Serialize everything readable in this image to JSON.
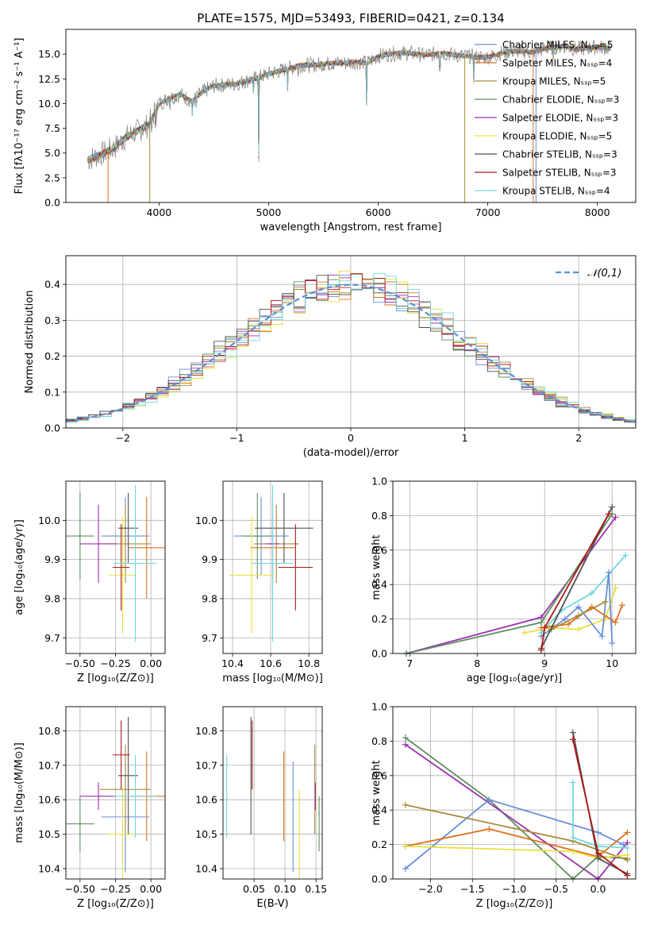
{
  "chart_data": [
    {
      "type": "line",
      "title": "PLATE=1575, MJD=53493, FIBERID=0421, z=0.134",
      "xlabel": "wavelength [Angstrom, rest frame]",
      "ylabel": "Flux [fλ10⁻¹⁷ erg cm⁻² s⁻¹ A⁻¹]",
      "xlim": [
        3150,
        8350
      ],
      "ylim": [
        0,
        17.5
      ],
      "xticks": [
        "4000",
        "5000",
        "6000",
        "7000",
        "8000"
      ],
      "yticks": [
        "0.0",
        "2.5",
        "5.0",
        "7.5",
        "10.0",
        "12.5",
        "15.0"
      ],
      "legend_position": "top-right",
      "spectrum": {
        "x": [
          3350,
          3500,
          3600,
          3700,
          3800,
          3900,
          4000,
          4100,
          4200,
          4300,
          4400,
          4500,
          4600,
          4700,
          4800,
          4900,
          5000,
          5100,
          5200,
          5300,
          5400,
          5500,
          5600,
          5700,
          5800,
          5900,
          6000,
          6100,
          6200,
          6300,
          6400,
          6500,
          6600,
          6700,
          6800,
          6900,
          7000,
          7100,
          7200,
          7300,
          7400,
          7500,
          7600,
          7700,
          7800,
          7900,
          8000,
          8100
        ],
        "y": [
          4.3,
          5.0,
          5.6,
          6.6,
          7.2,
          7.8,
          10.0,
          10.6,
          10.9,
          10.2,
          11.2,
          11.8,
          11.9,
          12.0,
          12.3,
          12.6,
          13.0,
          13.3,
          13.6,
          13.9,
          13.9,
          14.0,
          14.1,
          14.1,
          14.2,
          14.1,
          14.8,
          15.0,
          15.1,
          15.1,
          14.9,
          15.0,
          15.1,
          14.9,
          14.8,
          14.7,
          14.7,
          15.0,
          15.3,
          15.3,
          15.2,
          15.5,
          15.7,
          15.8,
          15.5,
          15.6,
          15.7,
          15.6
        ]
      },
      "series": [
        {
          "name": "Chabrier MILES, N_SSP=5",
          "color": "#6a8fd8"
        },
        {
          "name": "Salpeter MILES, N_SSP=4",
          "color": "#e07020"
        },
        {
          "name": "Kroupa MILES, N_SSP=5",
          "color": "#a88a3a"
        },
        {
          "name": "Chabrier ELODIE, N_SSP=3",
          "color": "#5f8f5f"
        },
        {
          "name": "Salpeter ELODIE, N_SSP=3",
          "color": "#9b30b0"
        },
        {
          "name": "Kroupa ELODIE, N_SSP=5",
          "color": "#e6e040"
        },
        {
          "name": "Chabrier STELIB, N_SSP=3",
          "color": "#505050"
        },
        {
          "name": "Salpeter STELIB, N_SSP=3",
          "color": "#b01818"
        },
        {
          "name": "Kroupa STELIB, N_SSP=4",
          "color": "#70d8e0"
        }
      ]
    },
    {
      "type": "line",
      "xlabel": "(data-model)/error",
      "ylabel": "Normed distribution",
      "xlim": [
        -2.5,
        2.5
      ],
      "ylim": [
        0,
        0.48
      ],
      "xticks": [
        "−2",
        "−1",
        "0",
        "1",
        "2"
      ],
      "yticks": [
        "0.0",
        "0.1",
        "0.2",
        "0.3",
        "0.4"
      ],
      "legend": [
        "𝒩(0,1)"
      ],
      "legend_position": "top-right",
      "grid": true
    },
    {
      "type": "scatter",
      "xlabel": "Z [log₁₀(Z/Z⊙)]",
      "ylabel": "age  [log₁₀(age/yr)]",
      "xlim": [
        -0.6,
        0.1
      ],
      "ylim": [
        9.66,
        10.1
      ],
      "xticks": [
        "−0.50",
        "−0.25",
        "0.00"
      ],
      "yticks": [
        "9.7",
        "9.8",
        "9.9",
        "10.0"
      ],
      "grid": true
    },
    {
      "type": "scatter",
      "xlabel": "mass [log₁₀(M/M⊙)]",
      "xlim": [
        10.35,
        10.87
      ],
      "ylim": [
        9.66,
        10.1
      ],
      "xticks": [
        "10.4",
        "10.6",
        "10.8"
      ],
      "yticks": [
        "9.7",
        "9.8",
        "9.9",
        "10.0"
      ],
      "grid": true
    },
    {
      "type": "line",
      "xlabel": "age  [log₁₀(age/yr)]",
      "ylabel": "mass weight",
      "xlim": [
        6.75,
        10.35
      ],
      "ylim": [
        0,
        1
      ],
      "xticks": [
        "7",
        "8",
        "9",
        "10"
      ],
      "yticks": [
        "0.0",
        "0.2",
        "0.4",
        "0.6",
        "0.8",
        "1.0"
      ],
      "grid": true
    },
    {
      "type": "scatter",
      "xlabel": "Z [log₁₀(Z/Z⊙)]",
      "ylabel": "mass [log₁₀(M/M⊙)]",
      "xlim": [
        -0.6,
        0.1
      ],
      "ylim": [
        10.37,
        10.87
      ],
      "xticks": [
        "−0.50",
        "−0.25",
        "0.00"
      ],
      "yticks": [
        "10.4",
        "10.5",
        "10.6",
        "10.7",
        "10.8"
      ],
      "grid": true
    },
    {
      "type": "scatter",
      "xlabel": "E(B-V)",
      "xlim": [
        0,
        0.16
      ],
      "ylim": [
        10.37,
        10.87
      ],
      "xticks": [
        "0.05",
        "0.10",
        "0.15"
      ],
      "yticks": [
        "10.4",
        "10.5",
        "10.6",
        "10.7",
        "10.8"
      ],
      "grid": true
    },
    {
      "type": "line",
      "xlabel": "Z [log₁₀(Z/Z⊙)]",
      "ylabel": "mass weight",
      "xlim": [
        -2.45,
        0.45
      ],
      "ylim": [
        0,
        1
      ],
      "xticks": [
        "−2.0",
        "−1.5",
        "−1.0",
        "−0.5",
        "0.0"
      ],
      "yticks": [
        "0.0",
        "0.2",
        "0.4",
        "0.6",
        "0.8",
        "1.0"
      ],
      "grid": true
    }
  ]
}
